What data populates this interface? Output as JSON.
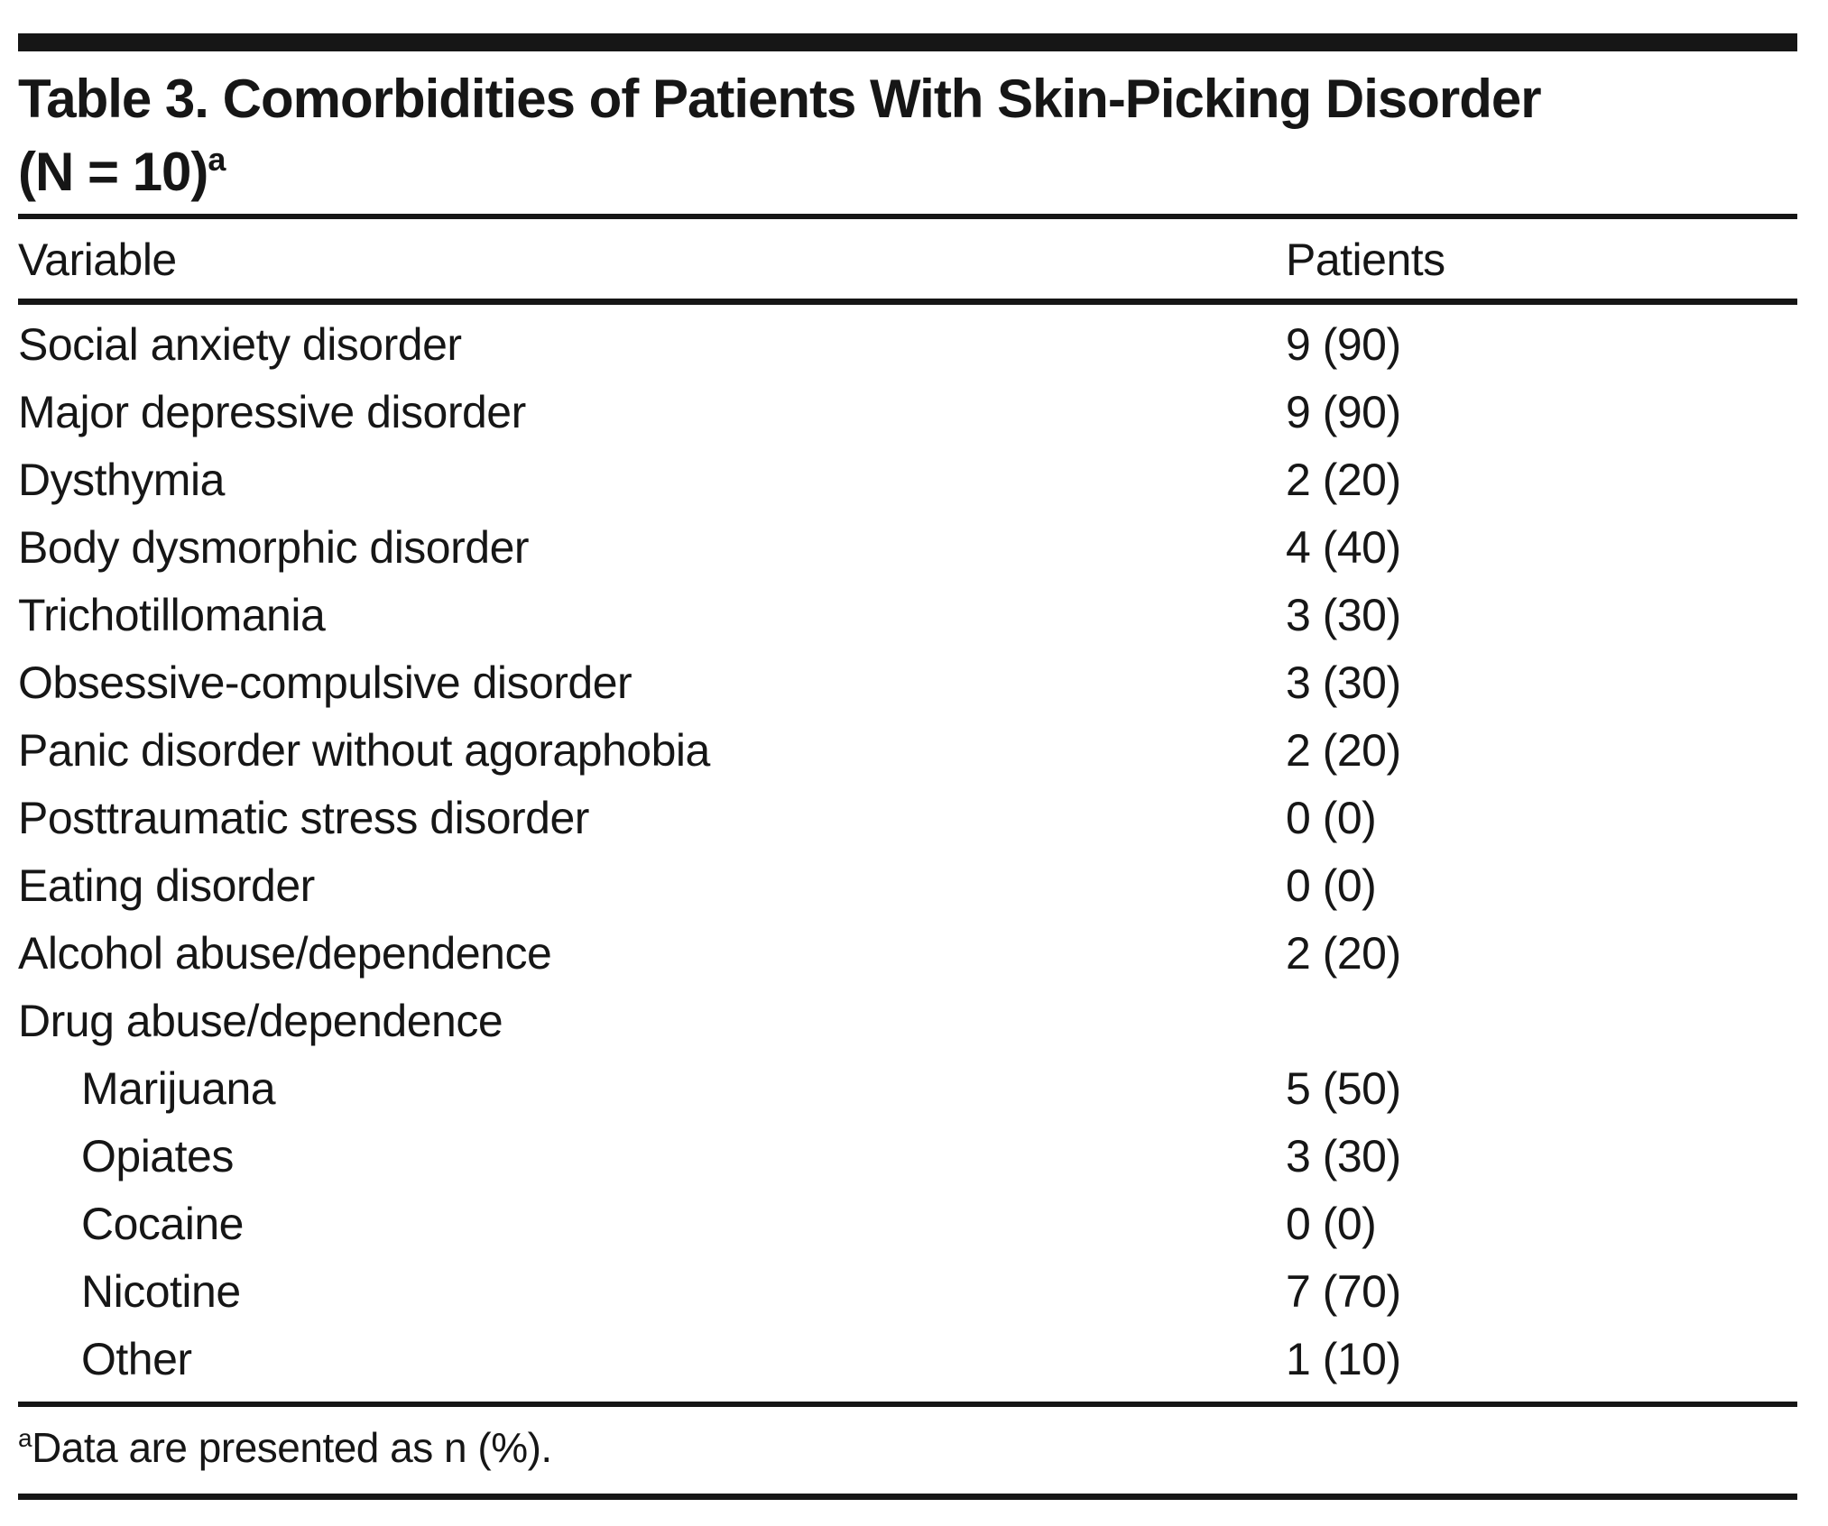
{
  "page": {
    "background": "#ffffff",
    "text_color": "#161616",
    "rule_color": "#161616"
  },
  "table": {
    "title_line1": "Table 3. Comorbidities of Patients With Skin-Picking Disorder",
    "title_line2": "(N = 10)",
    "title_footnote_marker": "a",
    "columns": [
      "Variable",
      "Patients"
    ],
    "rows": [
      {
        "label": "Social anxiety disorder",
        "value": "9 (90)",
        "indent": false
      },
      {
        "label": "Major depressive disorder",
        "value": "9 (90)",
        "indent": false
      },
      {
        "label": "Dysthymia",
        "value": "2 (20)",
        "indent": false
      },
      {
        "label": "Body dysmorphic disorder",
        "value": "4 (40)",
        "indent": false
      },
      {
        "label": "Trichotillomania",
        "value": "3 (30)",
        "indent": false
      },
      {
        "label": "Obsessive-compulsive disorder",
        "value": "3 (30)",
        "indent": false
      },
      {
        "label": "Panic disorder without agoraphobia",
        "value": "2 (20)",
        "indent": false
      },
      {
        "label": "Posttraumatic stress disorder",
        "value": "0 (0)",
        "indent": false
      },
      {
        "label": "Eating disorder",
        "value": "0 (0)",
        "indent": false
      },
      {
        "label": "Alcohol abuse/dependence",
        "value": "2 (20)",
        "indent": false
      },
      {
        "label": "Drug abuse/dependence",
        "value": "",
        "indent": false
      },
      {
        "label": "Marijuana",
        "value": "5 (50)",
        "indent": true
      },
      {
        "label": "Opiates",
        "value": "3 (30)",
        "indent": true
      },
      {
        "label": "Cocaine",
        "value": "0 (0)",
        "indent": true
      },
      {
        "label": "Nicotine",
        "value": "7 (70)",
        "indent": true
      },
      {
        "label": "Other",
        "value": "1 (10)",
        "indent": true
      }
    ],
    "footnote": {
      "marker": "a",
      "text": "Data are presented as n (%)."
    }
  }
}
